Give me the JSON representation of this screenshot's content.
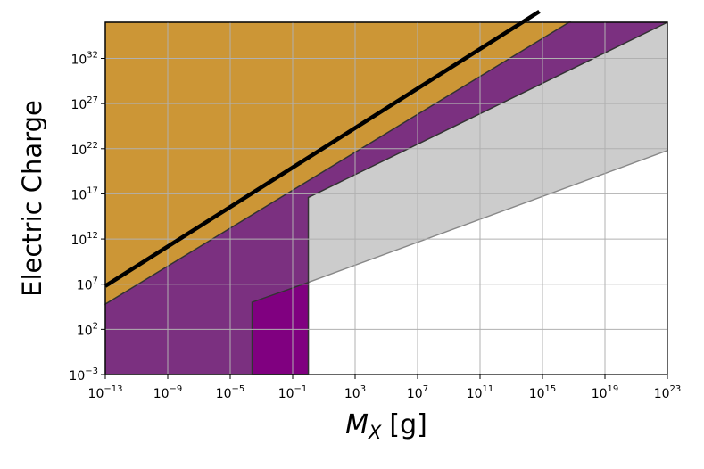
{
  "chart_data": {
    "type": "area",
    "title": "",
    "xlabel": "M",
    "xlabel_sub": "X",
    "xlabel_unit": "[g]",
    "ylabel": "Electric Charge",
    "xscale": "log",
    "yscale": "log",
    "xlim_log10": [
      -13,
      23
    ],
    "ylim_log10": [
      -3,
      36
    ],
    "grid": true,
    "x_ticks": [
      {
        "base": "10",
        "exp": "−13",
        "log10": -13
      },
      {
        "base": "10",
        "exp": "−9",
        "log10": -9
      },
      {
        "base": "10",
        "exp": "−5",
        "log10": -5
      },
      {
        "base": "10",
        "exp": "−1",
        "log10": -1
      },
      {
        "base": "10",
        "exp": "3",
        "log10": 3
      },
      {
        "base": "10",
        "exp": "7",
        "log10": 7
      },
      {
        "base": "10",
        "exp": "11",
        "log10": 11
      },
      {
        "base": "10",
        "exp": "15",
        "log10": 15
      },
      {
        "base": "10",
        "exp": "19",
        "log10": 19
      },
      {
        "base": "10",
        "exp": "23",
        "log10": 23
      }
    ],
    "y_ticks": [
      {
        "base": "10",
        "exp": "−3",
        "log10": -3
      },
      {
        "base": "10",
        "exp": "2",
        "log10": 2
      },
      {
        "base": "10",
        "exp": "7",
        "log10": 7
      },
      {
        "base": "10",
        "exp": "12",
        "log10": 12
      },
      {
        "base": "10",
        "exp": "17",
        "log10": 17
      },
      {
        "base": "10",
        "exp": "22",
        "log10": 22
      },
      {
        "base": "10",
        "exp": "27",
        "log10": 27
      },
      {
        "base": "10",
        "exp": "32",
        "log10": 32
      }
    ],
    "regions": [
      {
        "color": "#cccccc",
        "edge": "#888888",
        "points_log10": [
          [
            0,
            7.2
          ],
          [
            23,
            21.8
          ],
          [
            23,
            37.2
          ],
          [
            0,
            16.6
          ]
        ]
      },
      {
        "color": "#7b3080",
        "edge": "#333333",
        "points_log10": [
          [
            -13,
            -3
          ],
          [
            -13,
            4.8
          ],
          [
            16.7,
            37.2
          ],
          [
            23,
            37.2
          ],
          [
            0,
            16.6
          ],
          [
            0,
            -3
          ]
        ]
      },
      {
        "color": "#800080",
        "edge": "#333333",
        "points_log10": [
          [
            -3.6,
            -3
          ],
          [
            -3.6,
            5
          ],
          [
            0,
            7.2
          ],
          [
            0,
            -3
          ]
        ]
      },
      {
        "color": "#cc9636",
        "edge": "#333333",
        "points_log10": [
          [
            -13,
            4.8
          ],
          [
            -13,
            37.2
          ],
          [
            16.7,
            37.2
          ]
        ]
      }
    ],
    "lines": [
      {
        "color": "#000000",
        "points_log10": [
          [
            -13,
            6.8
          ],
          [
            14.8,
            37.2
          ]
        ]
      }
    ]
  }
}
